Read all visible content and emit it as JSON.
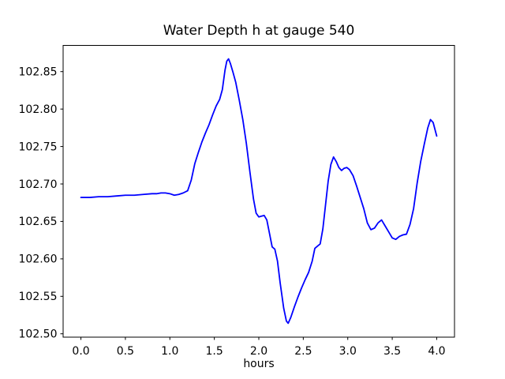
{
  "figure": {
    "background_color": "#ffffff",
    "text_color": "#000000"
  },
  "chart_data": {
    "type": "line",
    "title": "Water Depth h at gauge 540",
    "xlabel": "hours",
    "ylabel": "",
    "legend": null,
    "grid": false,
    "line_color": "#0000ff",
    "frame_color": "#000000",
    "xlim": [
      -0.2,
      4.2
    ],
    "ylim": [
      102.4955,
      102.885
    ],
    "xticks": [
      0.0,
      0.5,
      1.0,
      1.5,
      2.0,
      2.5,
      3.0,
      3.5,
      4.0
    ],
    "xtick_labels": [
      "0.0",
      "0.5",
      "1.0",
      "1.5",
      "2.0",
      "2.5",
      "3.0",
      "3.5",
      "4.0"
    ],
    "yticks": [
      102.5,
      102.55,
      102.6,
      102.65,
      102.7,
      102.75,
      102.8,
      102.85
    ],
    "ytick_labels": [
      "102.50",
      "102.55",
      "102.60",
      "102.65",
      "102.70",
      "102.75",
      "102.80",
      "102.85"
    ],
    "series": [
      {
        "name": "water-depth-h",
        "x": [
          0.0,
          0.1,
          0.2,
          0.3,
          0.4,
          0.5,
          0.6,
          0.7,
          0.8,
          0.85,
          0.9,
          0.95,
          1.0,
          1.05,
          1.1,
          1.15,
          1.2,
          1.24,
          1.28,
          1.32,
          1.36,
          1.4,
          1.44,
          1.48,
          1.52,
          1.56,
          1.59,
          1.62,
          1.64,
          1.66,
          1.68,
          1.71,
          1.74,
          1.78,
          1.82,
          1.86,
          1.9,
          1.94,
          1.97,
          2.0,
          2.03,
          2.06,
          2.09,
          2.12,
          2.15,
          2.18,
          2.21,
          2.24,
          2.28,
          2.31,
          2.33,
          2.36,
          2.4,
          2.44,
          2.48,
          2.52,
          2.56,
          2.6,
          2.63,
          2.66,
          2.69,
          2.72,
          2.75,
          2.78,
          2.81,
          2.84,
          2.87,
          2.9,
          2.93,
          2.96,
          2.99,
          3.02,
          3.06,
          3.1,
          3.14,
          3.18,
          3.22,
          3.26,
          3.3,
          3.34,
          3.38,
          3.42,
          3.46,
          3.5,
          3.54,
          3.58,
          3.62,
          3.66,
          3.7,
          3.74,
          3.78,
          3.82,
          3.86,
          3.9,
          3.93,
          3.96,
          4.0
        ],
        "y": [
          102.682,
          102.682,
          102.683,
          102.683,
          102.684,
          102.685,
          102.685,
          102.686,
          102.687,
          102.687,
          102.688,
          102.688,
          102.687,
          102.685,
          102.686,
          102.688,
          102.691,
          102.705,
          102.727,
          102.742,
          102.756,
          102.768,
          102.779,
          102.792,
          102.804,
          102.813,
          102.826,
          102.852,
          102.864,
          102.867,
          102.861,
          102.849,
          102.836,
          102.812,
          102.786,
          102.754,
          102.716,
          102.68,
          102.661,
          102.656,
          102.657,
          102.658,
          102.652,
          102.634,
          102.616,
          102.613,
          102.597,
          102.568,
          102.534,
          102.517,
          102.514,
          102.522,
          102.536,
          102.549,
          102.561,
          102.572,
          102.582,
          102.597,
          102.614,
          102.617,
          102.62,
          102.64,
          102.672,
          102.704,
          102.726,
          102.736,
          102.73,
          102.722,
          102.718,
          102.721,
          102.722,
          102.719,
          102.711,
          102.697,
          102.682,
          102.667,
          102.648,
          102.639,
          102.641,
          102.648,
          102.652,
          102.644,
          102.636,
          102.628,
          102.626,
          102.63,
          102.632,
          102.633,
          102.646,
          102.667,
          102.701,
          102.73,
          102.753,
          102.775,
          102.786,
          102.782,
          102.764
        ]
      }
    ]
  }
}
